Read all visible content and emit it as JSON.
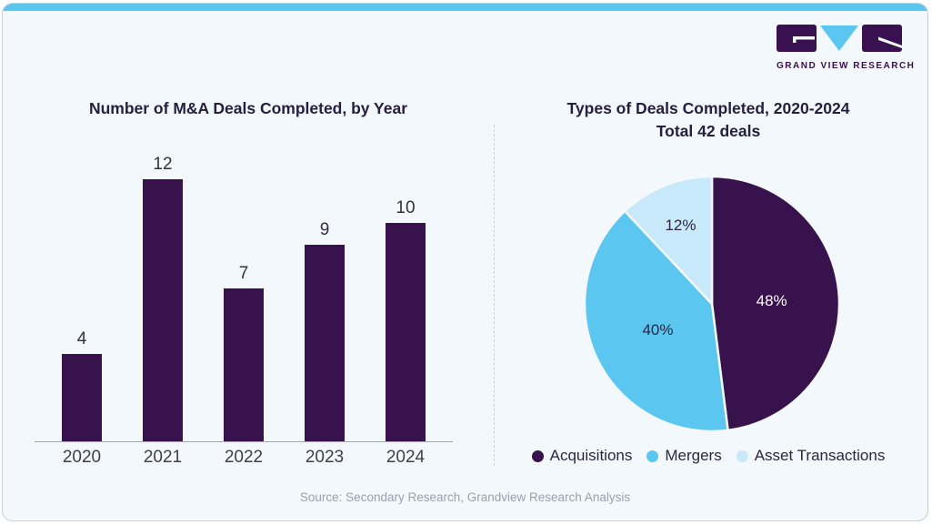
{
  "brand": {
    "name": "GRAND VIEW RESEARCH",
    "purple": "#3a1150",
    "blue": "#5bc6ef"
  },
  "top_bar_color": "#5bc6ef",
  "source_note": "Source: Secondary Research, Grandview Research Analysis",
  "chart_data": [
    {
      "type": "bar",
      "title": "Number of M&A Deals Completed, by Year",
      "categories": [
        "2020",
        "2021",
        "2022",
        "2023",
        "2024"
      ],
      "values": [
        4,
        12,
        7,
        9,
        10
      ],
      "bar_color": "#38124d",
      "xlabel": "",
      "ylabel": "",
      "ylim": [
        0,
        12
      ],
      "gridlines": false,
      "data_labels": true
    },
    {
      "type": "pie",
      "title": "Types of Deals Completed, 2020-2024",
      "subtitle": "Total 42 deals",
      "start_at_top_clockwise": true,
      "legend_position": "bottom",
      "slices": [
        {
          "label": "Acquisitions",
          "pct": 48,
          "color": "#38124d",
          "label_color": "#ffffff"
        },
        {
          "label": "Mergers",
          "pct": 40,
          "color": "#5bc6ef",
          "label_color": "#2b2540"
        },
        {
          "label": "Asset Transactions",
          "pct": 12,
          "color": "#c8e9fa",
          "label_color": "#2b2540"
        }
      ]
    }
  ]
}
